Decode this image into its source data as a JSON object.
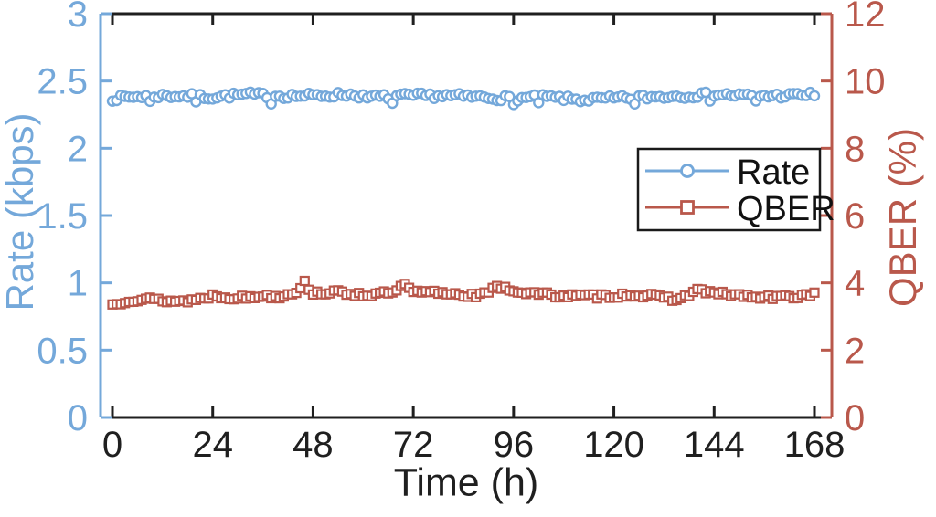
{
  "chart_data": {
    "type": "line",
    "title": "",
    "xlabel": "Time (h)",
    "x_ticks": [
      0,
      24,
      48,
      72,
      96,
      120,
      144,
      168
    ],
    "x_range_h": [
      0,
      168
    ],
    "grid": false,
    "background": "#ffffff",
    "axis_black_color": "#1f1f1f",
    "y_left": {
      "label": "Rate (kbps)",
      "lim": [
        0,
        3
      ],
      "ticks": [
        0,
        0.5,
        1,
        1.5,
        2,
        2.5,
        3
      ],
      "color": "#74a8da"
    },
    "y_right": {
      "label": "QBER (%)",
      "lim": [
        0,
        12
      ],
      "ticks": [
        0,
        2,
        4,
        6,
        8,
        10,
        12
      ],
      "color": "#b9584b"
    },
    "series": [
      {
        "name": "Rate",
        "axis": "left",
        "units": "kbps",
        "color": "#74a8da",
        "marker": "circle",
        "approx_mean": 2.39,
        "sample_step_h": 1,
        "noise_amplitude": 0.04,
        "dips": [
          {
            "every": 29,
            "offset": 9,
            "amount": 0.05
          },
          {
            "every": 41,
            "offset": 20,
            "amount": 0.03
          }
        ],
        "trend_x": [
          0,
          8,
          16,
          24,
          32,
          40,
          48,
          56,
          64,
          72,
          80,
          88,
          96,
          104,
          112,
          120,
          128,
          136,
          144,
          152,
          160,
          168
        ],
        "trend_y": [
          2.37,
          2.39,
          2.39,
          2.38,
          2.4,
          2.39,
          2.39,
          2.4,
          2.38,
          2.39,
          2.39,
          2.38,
          2.37,
          2.38,
          2.36,
          2.37,
          2.38,
          2.39,
          2.4,
          2.39,
          2.39,
          2.4
        ]
      },
      {
        "name": "QBER",
        "axis": "right",
        "units": "%",
        "color": "#b9584b",
        "marker": "square",
        "approx_mean": 3.65,
        "sample_step_h": 1,
        "noise_amplitude": 0.14,
        "dips": [],
        "trend_x": [
          0,
          4,
          8,
          12,
          16,
          20,
          24,
          28,
          32,
          36,
          40,
          44,
          46,
          48,
          52,
          56,
          60,
          64,
          68,
          70,
          72,
          76,
          80,
          84,
          88,
          92,
          94,
          96,
          100,
          104,
          108,
          112,
          116,
          120,
          124,
          128,
          132,
          136,
          140,
          144,
          148,
          152,
          156,
          160,
          164,
          168
        ],
        "trend_y": [
          3.35,
          3.5,
          3.52,
          3.48,
          3.45,
          3.5,
          3.62,
          3.58,
          3.55,
          3.62,
          3.6,
          3.75,
          4.0,
          3.7,
          3.72,
          3.7,
          3.65,
          3.66,
          3.75,
          3.95,
          3.7,
          3.72,
          3.7,
          3.65,
          3.62,
          3.85,
          3.9,
          3.75,
          3.7,
          3.65,
          3.62,
          3.6,
          3.6,
          3.62,
          3.65,
          3.62,
          3.55,
          3.52,
          3.8,
          3.68,
          3.65,
          3.6,
          3.55,
          3.58,
          3.6,
          3.68
        ]
      }
    ],
    "legend": {
      "entries": [
        "Rate",
        "QBER"
      ],
      "location": "middle-right",
      "boxed": true
    }
  }
}
